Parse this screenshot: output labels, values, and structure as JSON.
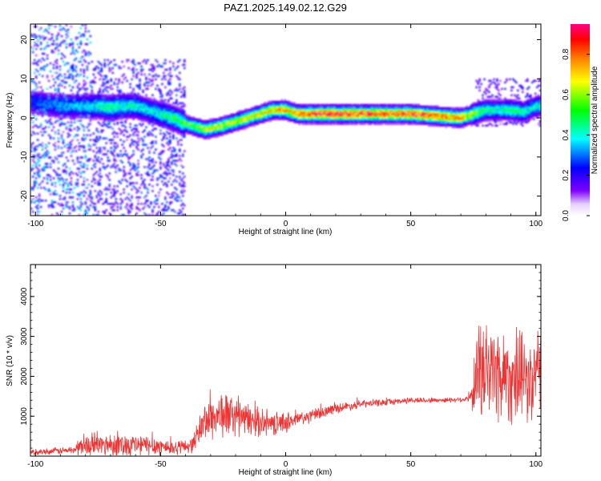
{
  "figure": {
    "title": "PAZ1.2025.149.02.12.G29"
  },
  "chart_data": [
    {
      "type": "heatmap",
      "xlabel": "Height of straight line (km)",
      "ylabel": "Frequency (Hz)",
      "xlim": [
        -102,
        102
      ],
      "ylim": [
        -25,
        24
      ],
      "xticks": [
        -100,
        -50,
        0,
        50,
        100
      ],
      "yticks": [
        -20,
        -10,
        0,
        10,
        20
      ],
      "colorbar": {
        "label": "Normalized spectral amplitude",
        "range": [
          0,
          0.95
        ],
        "ticks": [
          0.0,
          0.2,
          0.4,
          0.6,
          0.8
        ],
        "colormap": [
          "#ffffff",
          "#7f00ff",
          "#0000ff",
          "#00ffff",
          "#00ff00",
          "#ffff00",
          "#ff7f00",
          "#ff0000",
          "#ff0088"
        ]
      },
      "ridge": {
        "x": [
          -100,
          -90,
          -80,
          -75,
          -70,
          -65,
          -60,
          -55,
          -50,
          -45,
          -40,
          -35,
          -32,
          -25,
          -20,
          -15,
          -10,
          -5,
          0,
          5,
          10,
          20,
          30,
          40,
          50,
          60,
          70,
          75,
          80,
          85,
          90,
          95,
          100
        ],
        "y": [
          4,
          3,
          3,
          3,
          2.5,
          3,
          3,
          2,
          1,
          0,
          -1.5,
          -2.5,
          -3,
          -2,
          -1,
          0,
          1,
          2,
          2,
          1,
          1,
          1,
          1,
          1,
          1,
          0.5,
          0,
          1,
          2,
          2,
          2,
          1.5,
          3
        ],
        "amplitude": [
          0.25,
          0.3,
          0.35,
          0.4,
          0.45,
          0.4,
          0.4,
          0.35,
          0.4,
          0.45,
          0.5,
          0.55,
          0.6,
          0.6,
          0.6,
          0.6,
          0.65,
          0.7,
          0.75,
          0.75,
          0.85,
          0.9,
          0.85,
          0.8,
          0.85,
          0.8,
          0.75,
          0.55,
          0.45,
          0.4,
          0.45,
          0.4,
          0.4
        ]
      },
      "noise": [
        {
          "x_range": [
            -102,
            -78
          ],
          "f_range": [
            -25,
            24
          ],
          "level": 0.25
        },
        {
          "x_range": [
            -78,
            -40
          ],
          "f_range": [
            -25,
            15
          ],
          "level": 0.2
        },
        {
          "x_range": [
            75,
            102
          ],
          "f_range": [
            -2,
            10
          ],
          "level": 0.15
        }
      ]
    },
    {
      "type": "line",
      "xlabel": "Height of straight line (km)",
      "ylabel": "SNR (10 * v/v)",
      "xlim": [
        -102,
        102
      ],
      "ylim": [
        0,
        4800
      ],
      "xticks": [
        -100,
        -50,
        0,
        50,
        100
      ],
      "yticks": [
        1000,
        2000,
        3000,
        4000
      ],
      "line_color": "#ee3333",
      "series": [
        {
          "x": [
            -102,
            -85,
            -82,
            -70,
            -60,
            -50,
            -45,
            -40,
            -37,
            -35,
            -32,
            -28,
            -25,
            -20,
            -15,
            -10,
            -5,
            0,
            10,
            20,
            30,
            40,
            50,
            60,
            70,
            74,
            76,
            80,
            85,
            90,
            95,
            100,
            102
          ],
          "y": [
            100,
            150,
            250,
            300,
            280,
            250,
            200,
            250,
            300,
            600,
            900,
            1000,
            1050,
            1000,
            900,
            850,
            800,
            850,
            1000,
            1200,
            1300,
            1350,
            1400,
            1400,
            1420,
            1450,
            2000,
            2200,
            2100,
            2000,
            1900,
            1800,
            2500
          ],
          "spread": [
            80,
            120,
            300,
            350,
            350,
            280,
            220,
            200,
            250,
            400,
            600,
            700,
            700,
            600,
            500,
            400,
            350,
            300,
            200,
            150,
            120,
            100,
            90,
            80,
            80,
            150,
            1500,
            1600,
            1500,
            1400,
            1300,
            1300,
            2000
          ]
        }
      ]
    }
  ]
}
